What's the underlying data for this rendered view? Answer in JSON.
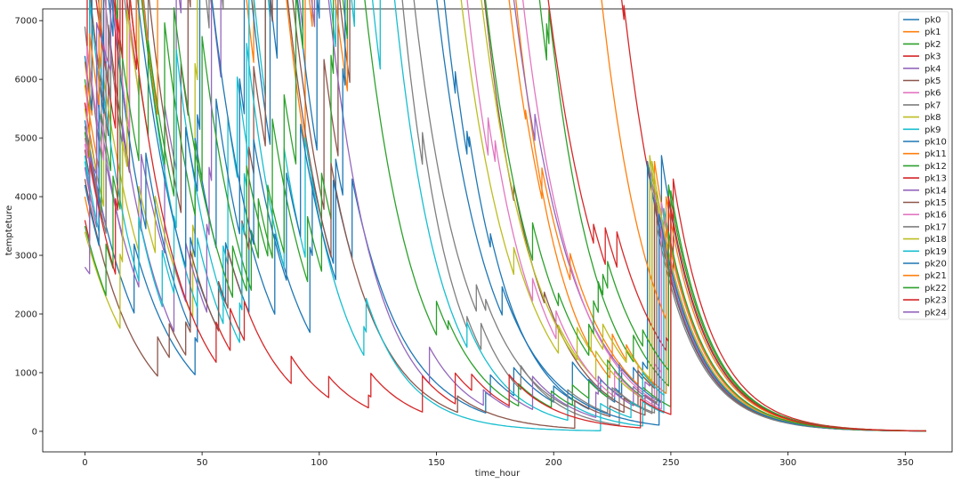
{
  "chart_data": {
    "type": "line",
    "title": "",
    "xlabel": "time_hour",
    "ylabel": "tempteture",
    "xlim": [
      -18,
      370
    ],
    "ylim": [
      -350,
      7200
    ],
    "xticks": [
      0,
      50,
      100,
      150,
      200,
      250,
      300,
      350
    ],
    "yticks": [
      0,
      1000,
      2000,
      3000,
      4000,
      5000,
      6000,
      7000
    ],
    "grid": false,
    "legend_position": "top-right",
    "series": [
      {
        "name": "pk0",
        "color": "#1f77b4",
        "start": 5300,
        "decay": 0.046,
        "reset": 4700,
        "reset_at": 246
      },
      {
        "name": "pk1",
        "color": "#ff7f0e",
        "start": 6300,
        "decay": 0.052,
        "reset": 4600,
        "reset_at": 243
      },
      {
        "name": "pk2",
        "color": "#2ca02c",
        "start": 6000,
        "decay": 0.05,
        "reset": 4200,
        "reset_at": 249
      },
      {
        "name": "pk3",
        "color": "#d62728",
        "start": 5600,
        "decay": 0.048,
        "reset": 4300,
        "reset_at": 251
      },
      {
        "name": "pk4",
        "color": "#9467bd",
        "start": 5200,
        "decay": 0.044,
        "reset": 4500,
        "reset_at": 241
      },
      {
        "name": "pk5",
        "color": "#8c564b",
        "start": 4800,
        "decay": 0.05,
        "reset": 4100,
        "reset_at": 244
      },
      {
        "name": "pk6",
        "color": "#e377c2",
        "start": 5000,
        "decay": 0.047,
        "reset": 3900,
        "reset_at": 246
      },
      {
        "name": "pk7",
        "color": "#7f7f7f",
        "start": 6900,
        "decay": 0.056,
        "reset": 4400,
        "reset_at": 242
      },
      {
        "name": "pk8",
        "color": "#bcbd22",
        "start": 5500,
        "decay": 0.045,
        "reset": 4700,
        "reset_at": 241
      },
      {
        "name": "pk9",
        "color": "#17becf",
        "start": 4600,
        "decay": 0.053,
        "reset": 3800,
        "reset_at": 247
      },
      {
        "name": "pk10",
        "color": "#1f77b4",
        "start": 6400,
        "decay": 0.052,
        "reset": 4600,
        "reset_at": 240
      },
      {
        "name": "pk11",
        "color": "#ff7f0e",
        "start": 5900,
        "decay": 0.046,
        "reset": 4000,
        "reset_at": 248
      },
      {
        "name": "pk12",
        "color": "#2ca02c",
        "start": 5100,
        "decay": 0.049,
        "reset": 4100,
        "reset_at": 250
      },
      {
        "name": "pk13",
        "color": "#d62728",
        "start": 5600,
        "decay": 0.043,
        "reset": 4000,
        "reset_at": 249
      },
      {
        "name": "pk14",
        "color": "#9467bd",
        "start": 4500,
        "decay": 0.051,
        "reset": 3700,
        "reset_at": 245
      },
      {
        "name": "pk15",
        "color": "#8c564b",
        "start": 4300,
        "decay": 0.049,
        "reset": 3900,
        "reset_at": 243
      },
      {
        "name": "pk16",
        "color": "#e377c2",
        "start": 4900,
        "decay": 0.05,
        "reset": 3600,
        "reset_at": 246
      },
      {
        "name": "pk17",
        "color": "#7f7f7f",
        "start": 5200,
        "decay": 0.048,
        "reset": 3500,
        "reset_at": 244
      },
      {
        "name": "pk18",
        "color": "#bcbd22",
        "start": 3400,
        "decay": 0.044,
        "reset": 4600,
        "reset_at": 242
      },
      {
        "name": "pk19",
        "color": "#17becf",
        "start": 4700,
        "decay": 0.054,
        "reset": 3300,
        "reset_at": 247
      },
      {
        "name": "pk20",
        "color": "#1f77b4",
        "start": 4200,
        "decay": 0.047,
        "reset": 3700,
        "reset_at": 245
      },
      {
        "name": "pk21",
        "color": "#ff7f0e",
        "start": 4000,
        "decay": 0.049,
        "reset": 3500,
        "reset_at": 248
      },
      {
        "name": "pk22",
        "color": "#2ca02c",
        "start": 3500,
        "decay": 0.046,
        "reset": 3400,
        "reset_at": 249
      },
      {
        "name": "pk23",
        "color": "#d62728",
        "start": 3600,
        "decay": 0.05,
        "reset": 3800,
        "reset_at": 250
      },
      {
        "name": "pk24",
        "color": "#9467bd",
        "start": 2800,
        "decay": 0.021,
        "reset": 0,
        "reset_at": 0
      }
    ]
  }
}
